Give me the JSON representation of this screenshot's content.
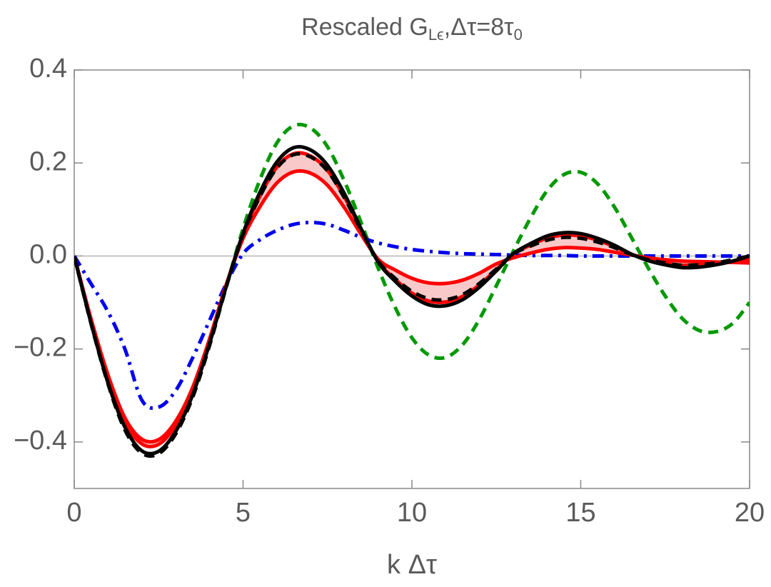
{
  "chart_data": {
    "type": "line",
    "title": [
      {
        "text": "Rescaled G"
      },
      {
        "text": "Lϵ",
        "baseline": "sub"
      },
      {
        "text": ",Δτ=8τ"
      },
      {
        "text": "0",
        "baseline": "sub"
      }
    ],
    "xlabel": "k Δτ",
    "xlim": [
      0,
      20
    ],
    "ylim": [
      -0.5,
      0.4
    ],
    "xticks": [
      0,
      5,
      10,
      15,
      20
    ],
    "yticks": [
      0.4,
      0.2,
      {
        "value": 0,
        "label": "0.0"
      },
      {
        "value": -0.2,
        "label": "−0.2"
      },
      {
        "value": -0.4,
        "label": "−0.4"
      }
    ],
    "zero_line": true,
    "fill_between": [
      2,
      3
    ],
    "fill_color": "#f9c8c8",
    "x": [
      0,
      0.5,
      1,
      1.5,
      2,
      2.5,
      3,
      3.5,
      4,
      4.5,
      5,
      5.5,
      6,
      6.5,
      7,
      7.5,
      8,
      8.5,
      9,
      9.5,
      10,
      10.5,
      11,
      11.5,
      12,
      12.5,
      13,
      13.5,
      14,
      14.5,
      15,
      15.5,
      16,
      16.5,
      17,
      17.5,
      18,
      18.5,
      19,
      19.5,
      20
    ],
    "series": [
      {
        "color": "#009900",
        "dash": "dashed",
        "values": [
          0,
          -0.146,
          -0.275,
          -0.374,
          -0.424,
          -0.425,
          -0.383,
          -0.305,
          -0.194,
          -0.067,
          0.059,
          0.164,
          0.243,
          0.28,
          0.275,
          0.235,
          0.161,
          0.071,
          -0.026,
          -0.11,
          -0.176,
          -0.213,
          -0.218,
          -0.191,
          -0.136,
          -0.064,
          0.01,
          0.08,
          0.14,
          0.175,
          0.18,
          0.155,
          0.105,
          0.04,
          -0.026,
          -0.086,
          -0.134,
          -0.16,
          -0.163,
          -0.145,
          -0.1
        ]
      },
      {
        "color": "#0000ee",
        "dash": "dashdot",
        "values": [
          0,
          -0.06,
          -0.12,
          -0.2,
          -0.31,
          -0.325,
          -0.29,
          -0.22,
          -0.14,
          -0.06,
          0.005,
          0.035,
          0.055,
          0.068,
          0.072,
          0.068,
          0.055,
          0.04,
          0.028,
          0.02,
          0.014,
          0.01,
          0.007,
          0.005,
          0.004,
          0.003,
          0.002,
          0.001,
          0.001,
          0.001,
          0,
          0,
          0,
          0,
          0,
          0,
          0,
          0,
          0,
          0,
          0
        ]
      },
      {
        "color": "#ff0000",
        "dash": "solid",
        "values": [
          0,
          -0.136,
          -0.256,
          -0.348,
          -0.394,
          -0.395,
          -0.356,
          -0.284,
          -0.18,
          -0.062,
          0.038,
          0.106,
          0.157,
          0.181,
          0.178,
          0.152,
          0.104,
          0.046,
          -0.007,
          -0.03,
          -0.048,
          -0.058,
          -0.059,
          -0.052,
          -0.037,
          -0.017,
          -0.004,
          0.006,
          0.014,
          0.018,
          0.017,
          0.014,
          0.008,
          0.002,
          -0.004,
          -0.008,
          -0.011,
          -0.012,
          -0.013,
          -0.014,
          -0.015
        ]
      },
      {
        "color": "#ff0000",
        "dash": "solid",
        "values": [
          0,
          -0.139,
          -0.262,
          -0.357,
          -0.404,
          -0.405,
          -0.365,
          -0.291,
          -0.185,
          -0.064,
          0.047,
          0.129,
          0.191,
          0.22,
          0.215,
          0.184,
          0.127,
          0.056,
          -0.012,
          -0.05,
          -0.08,
          -0.097,
          -0.099,
          -0.087,
          -0.062,
          -0.029,
          0.004,
          0.023,
          0.038,
          0.045,
          0.043,
          0.034,
          0.02,
          0.004,
          -0.008,
          -0.015,
          -0.02,
          -0.019,
          -0.016,
          -0.012,
          -0.008
        ]
      },
      {
        "color": "#000000",
        "dash": "solid",
        "values": [
          0,
          -0.145,
          -0.273,
          -0.368,
          -0.419,
          -0.42,
          -0.378,
          -0.3,
          -0.19,
          -0.066,
          0.049,
          0.137,
          0.202,
          0.233,
          0.228,
          0.195,
          0.134,
          0.058,
          -0.013,
          -0.054,
          -0.086,
          -0.105,
          -0.107,
          -0.094,
          -0.067,
          -0.032,
          0.005,
          0.026,
          0.043,
          0.05,
          0.048,
          0.038,
          0.023,
          0.004,
          -0.01,
          -0.019,
          -0.025,
          -0.024,
          -0.019,
          -0.011,
          0
        ]
      },
      {
        "color": "#000000",
        "dash": "dashed",
        "values": [
          0,
          -0.146,
          -0.275,
          -0.374,
          -0.424,
          -0.425,
          -0.383,
          -0.305,
          -0.194,
          -0.067,
          0.046,
          0.128,
          0.189,
          0.218,
          0.213,
          0.183,
          0.125,
          0.055,
          -0.011,
          -0.048,
          -0.076,
          -0.092,
          -0.094,
          -0.083,
          -0.059,
          -0.028,
          0.004,
          0.021,
          0.034,
          0.04,
          0.038,
          0.03,
          0.018,
          0.003,
          -0.008,
          -0.015,
          -0.02,
          -0.019,
          -0.015,
          -0.008,
          0
        ]
      }
    ]
  }
}
